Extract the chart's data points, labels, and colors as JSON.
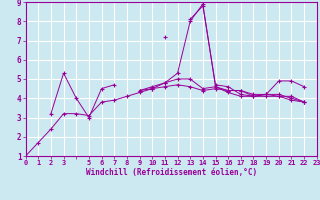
{
  "xlabel": "Windchill (Refroidissement éolien,°C)",
  "background_color": "#cce8f0",
  "grid_color": "#ffffff",
  "line_color": "#990099",
  "xlim": [
    0,
    23
  ],
  "ylim": [
    1,
    9
  ],
  "ytick_positions": [
    1,
    2,
    3,
    4,
    5,
    6,
    7,
    8,
    9
  ],
  "series": [
    {
      "x": [
        0,
        1,
        2,
        3,
        4,
        5,
        6,
        7,
        8,
        9,
        10,
        11,
        12,
        13,
        14,
        15,
        16,
        17,
        18,
        19,
        20,
        21,
        22
      ],
      "y": [
        1.0,
        1.7,
        2.4,
        3.2,
        3.2,
        3.1,
        3.8,
        3.9,
        4.1,
        4.3,
        4.5,
        4.8,
        5.3,
        8.0,
        8.9,
        4.6,
        4.3,
        4.1,
        4.1,
        4.1,
        4.1,
        3.9,
        3.8
      ]
    },
    {
      "x": [
        2,
        3,
        4,
        5,
        6,
        7,
        11,
        13,
        14,
        15,
        16,
        17,
        18,
        19,
        20,
        21,
        22
      ],
      "y": [
        3.2,
        5.3,
        4.0,
        3.0,
        4.5,
        4.7,
        7.2,
        8.1,
        8.8,
        4.7,
        4.6,
        4.2,
        4.1,
        4.2,
        4.9,
        4.9,
        4.6
      ]
    },
    {
      "x": [
        9,
        10,
        11,
        12,
        13,
        14,
        15,
        16,
        17,
        18,
        19,
        20,
        21,
        22
      ],
      "y": [
        4.4,
        4.6,
        4.8,
        5.0,
        5.0,
        4.5,
        4.6,
        4.4,
        4.4,
        4.1,
        4.2,
        4.1,
        4.1,
        3.8
      ]
    },
    {
      "x": [
        9,
        10,
        11,
        12,
        13,
        14,
        15,
        16,
        17,
        18,
        19,
        20,
        21,
        22
      ],
      "y": [
        4.4,
        4.5,
        4.6,
        4.7,
        4.6,
        4.4,
        4.5,
        4.4,
        4.4,
        4.2,
        4.2,
        4.2,
        4.0,
        3.8
      ]
    }
  ]
}
